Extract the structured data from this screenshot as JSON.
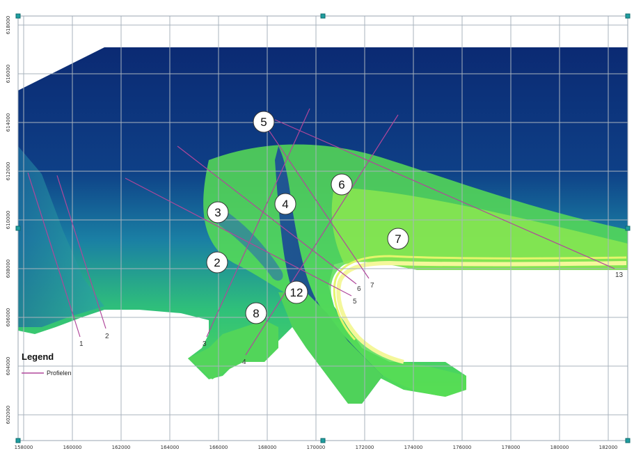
{
  "map": {
    "x_ticks": [
      "158000",
      "160000",
      "162000",
      "164000",
      "166000",
      "168000",
      "170000",
      "172000",
      "174000",
      "176000",
      "178000",
      "180000",
      "182000"
    ],
    "y_ticks": [
      "618000",
      "616000",
      "614000",
      "612000",
      "610000",
      "608000",
      "606000",
      "604000",
      "602000"
    ],
    "profiles": [
      {
        "id": "1",
        "label": "1"
      },
      {
        "id": "2",
        "label": "2"
      },
      {
        "id": "3",
        "label": "3"
      },
      {
        "id": "4",
        "label": "4"
      },
      {
        "id": "5",
        "label": "5"
      },
      {
        "id": "6",
        "label": "6"
      },
      {
        "id": "7",
        "label": "7"
      },
      {
        "id": "13",
        "label": "13"
      }
    ],
    "zones": [
      "5",
      "6",
      "4",
      "3",
      "7",
      "2",
      "12",
      "8"
    ],
    "legend": {
      "title": "Legend",
      "items": [
        {
          "label": "Profielen",
          "color": "#b0479b"
        }
      ]
    },
    "colors": {
      "deep_water": "#0d2f7a",
      "mid_water": "#1f86a8",
      "shallow_water": "#3ccf6b",
      "shoal": "#9dee4f",
      "beach": "#f3f69a",
      "grid": "#a9b3bd",
      "profile_line": "#b0479b"
    }
  }
}
